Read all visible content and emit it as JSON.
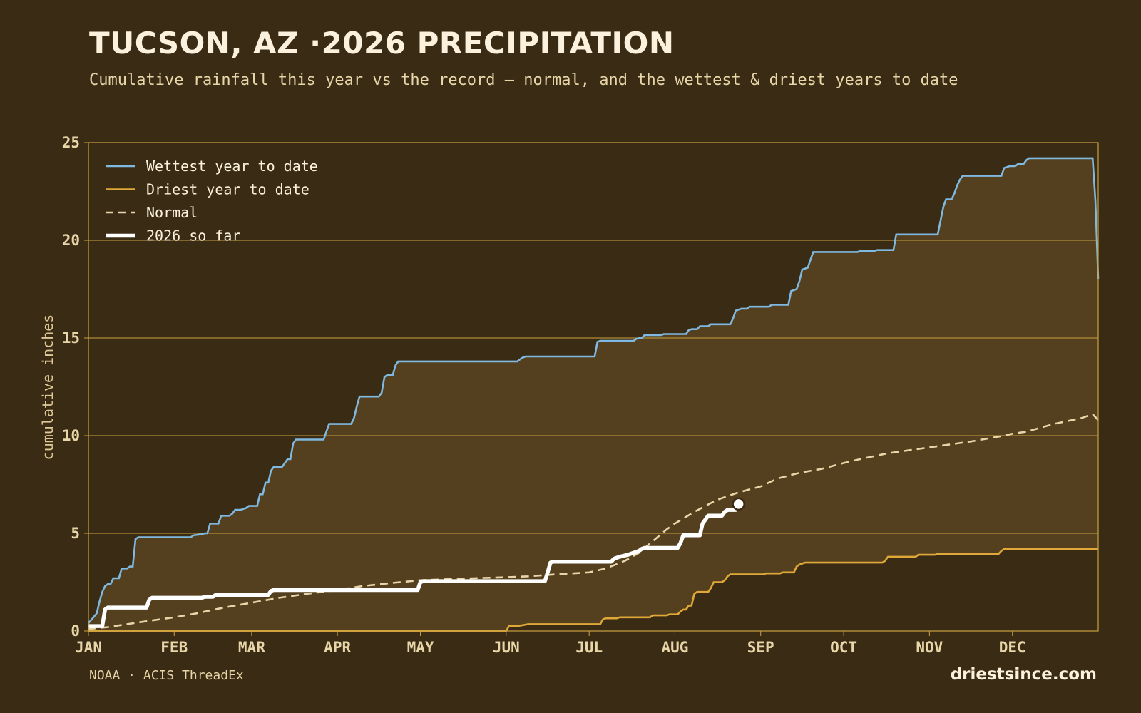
{
  "header": {
    "title": "TUCSON, AZ ·2026 PRECIPITATION",
    "subtitle": "Cumulative rainfall this year vs the record — normal, and the wettest & driest years to date"
  },
  "footer": {
    "source": "NOAA · ACIS ThreadEx",
    "brand": "driestsince.com"
  },
  "colors": {
    "background": "#3a2c14",
    "band_fill": "#54401e",
    "frame": "#c9a040",
    "wettest": "#7fb8e0",
    "driest": "#e0a838",
    "normal": "#e8d5a8",
    "current": "#ffffff"
  },
  "chart_data": {
    "type": "line",
    "title": "TUCSON, AZ ·2026 PRECIPITATION",
    "xlabel": "",
    "ylabel": "cumulative inches",
    "x_unit": "day of year",
    "xlim": [
      1,
      366
    ],
    "ylim": [
      0,
      25
    ],
    "grid": true,
    "legend_position": "top-left",
    "month_ticks": [
      {
        "label": "JAN",
        "day": 1
      },
      {
        "label": "FEB",
        "day": 32
      },
      {
        "label": "MAR",
        "day": 60
      },
      {
        "label": "APR",
        "day": 91
      },
      {
        "label": "MAY",
        "day": 121
      },
      {
        "label": "JUN",
        "day": 152
      },
      {
        "label": "JUL",
        "day": 182
      },
      {
        "label": "AUG",
        "day": 213
      },
      {
        "label": "SEP",
        "day": 244
      },
      {
        "label": "OCT",
        "day": 274
      },
      {
        "label": "NOV",
        "day": 305
      },
      {
        "label": "DEC",
        "day": 335
      }
    ],
    "y_ticks": [
      0,
      5,
      10,
      15,
      20,
      25
    ],
    "series": [
      {
        "name": "Wettest year to date",
        "key": "wettest",
        "style": "solid",
        "points": [
          [
            1,
            0.4
          ],
          [
            4,
            0.9
          ],
          [
            5,
            1.5
          ],
          [
            6,
            2.0
          ],
          [
            7,
            2.3
          ],
          [
            8,
            2.4
          ],
          [
            9,
            2.4
          ],
          [
            10,
            2.7
          ],
          [
            12,
            2.7
          ],
          [
            13,
            3.2
          ],
          [
            15,
            3.2
          ],
          [
            16,
            3.3
          ],
          [
            17,
            3.3
          ],
          [
            18,
            4.7
          ],
          [
            19,
            4.8
          ],
          [
            26,
            4.8
          ],
          [
            27,
            4.8
          ],
          [
            37,
            4.8
          ],
          [
            38,
            4.8
          ],
          [
            39,
            4.9
          ],
          [
            42,
            4.95
          ],
          [
            43,
            5.0
          ],
          [
            44,
            5.0
          ],
          [
            45,
            5.5
          ],
          [
            48,
            5.5
          ],
          [
            49,
            5.9
          ],
          [
            52,
            5.9
          ],
          [
            53,
            6.0
          ],
          [
            54,
            6.2
          ],
          [
            56,
            6.2
          ],
          [
            58,
            6.3
          ],
          [
            59,
            6.4
          ],
          [
            62,
            6.4
          ],
          [
            63,
            7.0
          ],
          [
            64,
            7.0
          ],
          [
            65,
            7.6
          ],
          [
            66,
            7.6
          ],
          [
            67,
            8.2
          ],
          [
            68,
            8.4
          ],
          [
            71,
            8.4
          ],
          [
            72,
            8.6
          ],
          [
            73,
            8.8
          ],
          [
            74,
            8.8
          ],
          [
            75,
            9.6
          ],
          [
            76,
            9.8
          ],
          [
            86,
            9.8
          ],
          [
            87,
            10.2
          ],
          [
            88,
            10.6
          ],
          [
            96,
            10.6
          ],
          [
            97,
            10.9
          ],
          [
            98,
            11.5
          ],
          [
            99,
            12.0
          ],
          [
            106,
            12.0
          ],
          [
            107,
            12.2
          ],
          [
            108,
            13.0
          ],
          [
            109,
            13.1
          ],
          [
            111,
            13.1
          ],
          [
            112,
            13.6
          ],
          [
            113,
            13.8
          ],
          [
            116,
            13.8
          ],
          [
            120,
            13.8
          ],
          [
            125,
            13.8
          ],
          [
            130,
            13.8
          ],
          [
            150,
            13.8
          ],
          [
            156,
            13.8
          ],
          [
            157,
            13.9
          ],
          [
            158,
            14.0
          ],
          [
            159,
            14.05
          ],
          [
            175,
            14.05
          ],
          [
            180,
            14.05
          ],
          [
            184,
            14.05
          ],
          [
            185,
            14.8
          ],
          [
            186,
            14.85
          ],
          [
            198,
            14.85
          ],
          [
            199,
            14.95
          ],
          [
            200,
            15.0
          ],
          [
            201,
            15.0
          ],
          [
            202,
            15.15
          ],
          [
            208,
            15.15
          ],
          [
            209,
            15.2
          ],
          [
            211,
            15.2
          ],
          [
            217,
            15.2
          ],
          [
            218,
            15.4
          ],
          [
            219,
            15.45
          ],
          [
            221,
            15.45
          ],
          [
            222,
            15.6
          ],
          [
            225,
            15.6
          ],
          [
            226,
            15.7
          ],
          [
            233,
            15.7
          ],
          [
            234,
            16.0
          ],
          [
            235,
            16.4
          ],
          [
            237,
            16.5
          ],
          [
            239,
            16.5
          ],
          [
            240,
            16.6
          ],
          [
            247,
            16.6
          ],
          [
            248,
            16.7
          ],
          [
            254,
            16.7
          ],
          [
            255,
            17.4
          ],
          [
            257,
            17.5
          ],
          [
            258,
            17.9
          ],
          [
            259,
            18.5
          ],
          [
            261,
            18.6
          ],
          [
            262,
            19.0
          ],
          [
            263,
            19.4
          ],
          [
            279,
            19.4
          ],
          [
            280,
            19.45
          ],
          [
            285,
            19.45
          ],
          [
            286,
            19.5
          ],
          [
            287,
            19.5
          ],
          [
            292,
            19.5
          ],
          [
            293,
            20.3
          ],
          [
            294,
            20.3
          ],
          [
            300,
            20.3
          ],
          [
            307,
            20.3
          ],
          [
            308,
            20.3
          ],
          [
            309,
            21.0
          ],
          [
            310,
            21.7
          ],
          [
            311,
            22.1
          ],
          [
            313,
            22.1
          ],
          [
            314,
            22.4
          ],
          [
            315,
            22.8
          ],
          [
            316,
            23.1
          ],
          [
            317,
            23.3
          ],
          [
            331,
            23.3
          ],
          [
            332,
            23.7
          ],
          [
            334,
            23.8
          ],
          [
            336,
            23.8
          ],
          [
            337,
            23.9
          ],
          [
            339,
            23.9
          ],
          [
            340,
            24.1
          ],
          [
            341,
            24.2
          ],
          [
            351,
            24.2
          ],
          [
            352,
            24.2
          ],
          [
            363,
            24.2
          ],
          [
            364,
            24.2
          ],
          [
            365,
            22.0
          ],
          [
            366,
            18.0
          ]
        ]
      },
      {
        "name": "Driest year to date",
        "key": "driest",
        "style": "solid",
        "points": [
          [
            1,
            0.0
          ],
          [
            100,
            0.0
          ],
          [
            152,
            0.0
          ],
          [
            153,
            0.25
          ],
          [
            156,
            0.25
          ],
          [
            158,
            0.3
          ],
          [
            160,
            0.35
          ],
          [
            170,
            0.35
          ],
          [
            180,
            0.35
          ],
          [
            186,
            0.35
          ],
          [
            187,
            0.6
          ],
          [
            188,
            0.65
          ],
          [
            192,
            0.65
          ],
          [
            193,
            0.7
          ],
          [
            200,
            0.7
          ],
          [
            204,
            0.7
          ],
          [
            205,
            0.8
          ],
          [
            210,
            0.8
          ],
          [
            211,
            0.85
          ],
          [
            214,
            0.85
          ],
          [
            215,
            1.0
          ],
          [
            216,
            1.1
          ],
          [
            217,
            1.1
          ],
          [
            218,
            1.3
          ],
          [
            219,
            1.3
          ],
          [
            220,
            1.9
          ],
          [
            221,
            2.0
          ],
          [
            225,
            2.0
          ],
          [
            226,
            2.2
          ],
          [
            227,
            2.5
          ],
          [
            230,
            2.5
          ],
          [
            231,
            2.6
          ],
          [
            232,
            2.8
          ],
          [
            233,
            2.9
          ],
          [
            245,
            2.9
          ],
          [
            246,
            2.95
          ],
          [
            251,
            2.95
          ],
          [
            252,
            3.0
          ],
          [
            256,
            3.0
          ],
          [
            257,
            3.3
          ],
          [
            258,
            3.4
          ],
          [
            260,
            3.5
          ],
          [
            270,
            3.5
          ],
          [
            280,
            3.5
          ],
          [
            288,
            3.5
          ],
          [
            289,
            3.6
          ],
          [
            290,
            3.8
          ],
          [
            300,
            3.8
          ],
          [
            301,
            3.9
          ],
          [
            305,
            3.9
          ],
          [
            307,
            3.9
          ],
          [
            308,
            3.95
          ],
          [
            330,
            3.95
          ],
          [
            331,
            4.1
          ],
          [
            332,
            4.2
          ],
          [
            340,
            4.2
          ],
          [
            366,
            4.2
          ]
        ]
      },
      {
        "name": "Normal",
        "key": "normal",
        "style": "dashed",
        "points": [
          [
            1,
            0.1
          ],
          [
            8,
            0.2
          ],
          [
            15,
            0.35
          ],
          [
            22,
            0.5
          ],
          [
            32,
            0.7
          ],
          [
            40,
            0.9
          ],
          [
            50,
            1.2
          ],
          [
            60,
            1.45
          ],
          [
            70,
            1.7
          ],
          [
            80,
            1.9
          ],
          [
            91,
            2.1
          ],
          [
            100,
            2.3
          ],
          [
            110,
            2.45
          ],
          [
            121,
            2.6
          ],
          [
            130,
            2.65
          ],
          [
            140,
            2.7
          ],
          [
            152,
            2.75
          ],
          [
            160,
            2.8
          ],
          [
            170,
            2.9
          ],
          [
            182,
            3.0
          ],
          [
            188,
            3.2
          ],
          [
            195,
            3.6
          ],
          [
            200,
            4.0
          ],
          [
            205,
            4.6
          ],
          [
            210,
            5.2
          ],
          [
            213,
            5.5
          ],
          [
            220,
            6.1
          ],
          [
            228,
            6.7
          ],
          [
            236,
            7.1
          ],
          [
            244,
            7.4
          ],
          [
            250,
            7.8
          ],
          [
            258,
            8.1
          ],
          [
            266,
            8.3
          ],
          [
            274,
            8.6
          ],
          [
            280,
            8.8
          ],
          [
            290,
            9.1
          ],
          [
            300,
            9.3
          ],
          [
            310,
            9.5
          ],
          [
            320,
            9.7
          ],
          [
            330,
            9.95
          ],
          [
            335,
            10.1
          ],
          [
            340,
            10.2
          ],
          [
            350,
            10.6
          ],
          [
            360,
            10.9
          ],
          [
            364,
            11.1
          ],
          [
            366,
            10.8
          ]
        ]
      },
      {
        "name": "2026 so far",
        "key": "current",
        "style": "solid-thick",
        "points": [
          [
            1,
            0.25
          ],
          [
            6,
            0.25
          ],
          [
            7,
            1.1
          ],
          [
            8,
            1.2
          ],
          [
            22,
            1.2
          ],
          [
            23,
            1.6
          ],
          [
            24,
            1.7
          ],
          [
            42,
            1.7
          ],
          [
            43,
            1.75
          ],
          [
            46,
            1.75
          ],
          [
            47,
            1.85
          ],
          [
            66,
            1.85
          ],
          [
            67,
            2.05
          ],
          [
            68,
            2.1
          ],
          [
            120,
            2.1
          ],
          [
            121,
            2.5
          ],
          [
            122,
            2.55
          ],
          [
            166,
            2.55
          ],
          [
            167,
            3.0
          ],
          [
            168,
            3.5
          ],
          [
            169,
            3.55
          ],
          [
            190,
            3.55
          ],
          [
            191,
            3.7
          ],
          [
            193,
            3.8
          ],
          [
            196,
            3.9
          ],
          [
            198,
            4.0
          ],
          [
            200,
            4.1
          ],
          [
            201,
            4.2
          ],
          [
            202,
            4.25
          ],
          [
            214,
            4.25
          ],
          [
            215,
            4.5
          ],
          [
            216,
            4.9
          ],
          [
            222,
            4.9
          ],
          [
            223,
            5.5
          ],
          [
            225,
            5.9
          ],
          [
            230,
            5.9
          ],
          [
            231,
            6.1
          ],
          [
            232,
            6.2
          ],
          [
            235,
            6.2
          ],
          [
            236,
            6.5
          ]
        ],
        "end_marker": {
          "day": 236,
          "value": 6.5
        }
      }
    ]
  }
}
